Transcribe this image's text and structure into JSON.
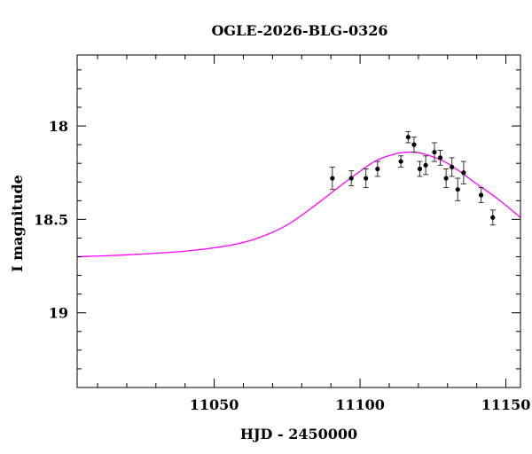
{
  "chart_data": {
    "type": "scatter",
    "title": "OGLE-2026-BLG-0326",
    "xlabel": "HJD - 2450000",
    "ylabel": "I magnitude",
    "xlim": [
      11003,
      11155
    ],
    "ylim": [
      19.4,
      17.62
    ],
    "y_inverted": true,
    "grid": false,
    "x_ticks": [
      11050,
      11100,
      11150
    ],
    "x_tick_labels": [
      "11050",
      "11100",
      "11150"
    ],
    "y_ticks": [
      18,
      18.5,
      19
    ],
    "y_tick_labels": [
      "18",
      "18.5",
      "19"
    ],
    "series": [
      {
        "style": "points-with-errorbars",
        "color": "#000000",
        "points": [
          {
            "x": 11090.5,
            "y": 18.28,
            "err": 0.06
          },
          {
            "x": 11097.0,
            "y": 18.28,
            "err": 0.04
          },
          {
            "x": 11102.0,
            "y": 18.28,
            "err": 0.05
          },
          {
            "x": 11106.0,
            "y": 18.23,
            "err": 0.04
          },
          {
            "x": 11114.0,
            "y": 18.19,
            "err": 0.03
          },
          {
            "x": 11116.5,
            "y": 18.06,
            "err": 0.03
          },
          {
            "x": 11118.5,
            "y": 18.1,
            "err": 0.04
          },
          {
            "x": 11120.5,
            "y": 18.23,
            "err": 0.04
          },
          {
            "x": 11122.5,
            "y": 18.21,
            "err": 0.05
          },
          {
            "x": 11125.5,
            "y": 18.14,
            "err": 0.05
          },
          {
            "x": 11127.5,
            "y": 18.17,
            "err": 0.04
          },
          {
            "x": 11129.5,
            "y": 18.28,
            "err": 0.05
          },
          {
            "x": 11131.5,
            "y": 18.22,
            "err": 0.05
          },
          {
            "x": 11133.5,
            "y": 18.34,
            "err": 0.06
          },
          {
            "x": 11135.5,
            "y": 18.25,
            "err": 0.06
          },
          {
            "x": 11141.5,
            "y": 18.37,
            "err": 0.04
          },
          {
            "x": 11145.5,
            "y": 18.49,
            "err": 0.04
          }
        ]
      },
      {
        "style": "model-curve",
        "color": "#ff00ff",
        "x": [
          11003,
          11020,
          11040,
          11055,
          11065,
          11075,
          11085,
          11095,
          11105,
          11112,
          11117,
          11122,
          11130,
          11140,
          11148,
          11155
        ],
        "y": [
          18.7,
          18.69,
          18.67,
          18.64,
          18.6,
          18.53,
          18.42,
          18.3,
          18.19,
          18.15,
          18.14,
          18.15,
          18.2,
          18.31,
          18.4,
          18.49
        ]
      }
    ]
  }
}
